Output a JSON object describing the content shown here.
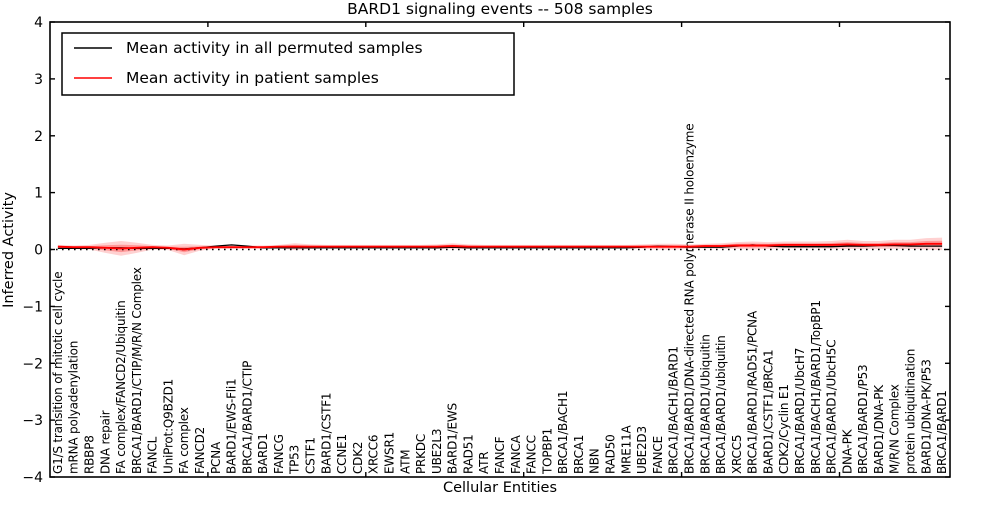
{
  "title": "BARD1 signaling events -- 508 samples",
  "axes": {
    "xlabel": "Cellular Entities",
    "ylabel": "Inferred Activity",
    "ytick_labels": [
      "−4",
      "−3",
      "−2",
      "−1",
      "0",
      "1",
      "2",
      "3",
      "4"
    ]
  },
  "colors": {
    "frame": "#000000",
    "zero_line": "#000000",
    "permuted_line": "#000000",
    "patient_line": "#ff0000",
    "band": "#ff0000"
  },
  "chart_data": {
    "type": "line",
    "title": "BARD1 signaling events -- 508 samples",
    "xlabel": "Cellular Entities",
    "ylabel": "Inferred Activity",
    "ylim": [
      -4,
      4
    ],
    "yticks": [
      {
        "value": -4,
        "label": "−4"
      },
      {
        "value": -3,
        "label": "−3"
      },
      {
        "value": -2,
        "label": "−2"
      },
      {
        "value": -1,
        "label": "−1"
      },
      {
        "value": 0,
        "label": "0"
      },
      {
        "value": 1,
        "label": "1"
      },
      {
        "value": 2,
        "label": "2"
      },
      {
        "value": 3,
        "label": "3"
      },
      {
        "value": 4,
        "label": "4"
      }
    ],
    "xticks": [
      10,
      20,
      30,
      40,
      50
    ],
    "grid": false,
    "legend_position": "upper left",
    "zero_line": {
      "y": 0,
      "style": "dotted",
      "color": "#000000"
    },
    "categories": [
      "G1/S transition of mitotic cell cycle",
      "mRNA polyadenylation",
      "RBBP8",
      "DNA repair",
      "FA complex/FANCD2/Ubiquitin",
      "BRCA1/BARD1/CTIP/M/R/N Complex",
      "FANCL",
      "UniProt:Q9BZD1",
      "FA complex",
      "FANCD2",
      "PCNA",
      "BARD1/EWS-Fli1",
      "BRCA1/BARD1/CTIP",
      "BARD1",
      "FANCG",
      "TP53",
      "CSTF1",
      "BARD1/CSTF1",
      "CCNE1",
      "CDK2",
      "XRCC6",
      "EWSR1",
      "ATM",
      "PRKDC",
      "UBE2L3",
      "BARD1/EWS",
      "RAD51",
      "ATR",
      "FANCF",
      "FANCA",
      "FANCC",
      "TOPBP1",
      "BRCA1/BACH1",
      "BRCA1",
      "NBN",
      "RAD50",
      "MRE11A",
      "UBE2D3",
      "FANCE",
      "BRCA1/BACH1/BARD1",
      "BRCA1/BARD1/DNA-directed RNA polymerase II holoenzyme",
      "BRCA1/BARD1/Ubiquitin",
      "BRCA1/BARD1/ubiquitin",
      "XRCC5",
      "BRCA1/BARD1/RAD51/PCNA",
      "BARD1/CSTF1/BRCA1",
      "CDK2/Cyclin E1",
      "BRCA1/BARD1/UbcH7",
      "BRCA1/BACH1/BARD1/TopBP1",
      "BRCA1/BARD1/UbcH5C",
      "DNA-PK",
      "BRCA1/BARD1/P53",
      "BARD1/DNA-PK",
      "M/R/N Complex",
      "protein ubiquitination",
      "BARD1/DNA-PK/P53",
      "BRCA1/BARD1"
    ],
    "series": [
      {
        "name": "Mean activity in all permuted samples",
        "color": "#000000",
        "values": [
          0.02,
          0.02,
          0.02,
          0.03,
          0.03,
          0.02,
          0.02,
          0.02,
          0.01,
          0.03,
          0.06,
          0.08,
          0.06,
          0.03,
          0.03,
          0.03,
          0.03,
          0.03,
          0.03,
          0.03,
          0.03,
          0.03,
          0.03,
          0.03,
          0.03,
          0.04,
          0.03,
          0.03,
          0.03,
          0.03,
          0.03,
          0.03,
          0.03,
          0.03,
          0.03,
          0.03,
          0.03,
          0.04,
          0.06,
          0.05,
          0.04,
          0.04,
          0.04,
          0.06,
          0.08,
          0.06,
          0.05,
          0.05,
          0.05,
          0.05,
          0.06,
          0.06,
          0.07,
          0.07,
          0.06,
          0.06,
          0.06
        ]
      },
      {
        "name": "Mean activity in patient samples",
        "color": "#ff0000",
        "values": [
          0.05,
          0.04,
          0.04,
          0.03,
          0.02,
          0.03,
          0.04,
          0.03,
          0.0,
          0.03,
          0.04,
          0.04,
          0.04,
          0.04,
          0.05,
          0.05,
          0.05,
          0.05,
          0.05,
          0.05,
          0.05,
          0.05,
          0.05,
          0.05,
          0.05,
          0.06,
          0.05,
          0.05,
          0.05,
          0.05,
          0.05,
          0.05,
          0.05,
          0.05,
          0.05,
          0.05,
          0.05,
          0.05,
          0.05,
          0.05,
          0.05,
          0.06,
          0.06,
          0.07,
          0.07,
          0.07,
          0.08,
          0.08,
          0.08,
          0.08,
          0.09,
          0.08,
          0.08,
          0.09,
          0.09,
          0.1,
          0.1
        ],
        "band_halfwidth": [
          0.03,
          0.03,
          0.04,
          0.09,
          0.13,
          0.09,
          0.04,
          0.04,
          0.1,
          0.05,
          0.03,
          0.03,
          0.03,
          0.03,
          0.03,
          0.06,
          0.04,
          0.03,
          0.03,
          0.03,
          0.03,
          0.03,
          0.03,
          0.03,
          0.04,
          0.05,
          0.04,
          0.03,
          0.03,
          0.03,
          0.03,
          0.03,
          0.03,
          0.03,
          0.03,
          0.03,
          0.03,
          0.04,
          0.05,
          0.05,
          0.04,
          0.04,
          0.05,
          0.06,
          0.07,
          0.06,
          0.06,
          0.06,
          0.06,
          0.07,
          0.08,
          0.07,
          0.07,
          0.08,
          0.08,
          0.1,
          0.11
        ],
        "band_color": "#ff0000"
      }
    ]
  }
}
